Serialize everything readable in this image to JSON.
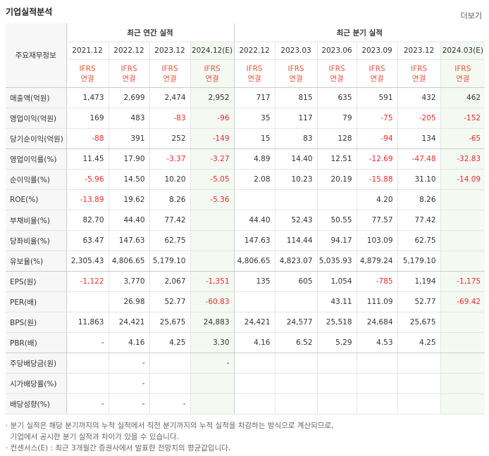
{
  "header": {
    "title": "기업실적분석",
    "more": "더보기"
  },
  "table": {
    "corner": "주요재무정보",
    "groups": [
      {
        "label": "최근 연간 실적",
        "columns": [
          {
            "period": "2021.12",
            "standard": "IFRS",
            "scope": "연결"
          },
          {
            "period": "2022.12",
            "standard": "IFRS",
            "scope": "연결"
          },
          {
            "period": "2023.12",
            "standard": "IFRS",
            "scope": "연결"
          },
          {
            "period": "2024.12(E)",
            "standard": "IFRS",
            "scope": "연결",
            "estimate": true
          }
        ]
      },
      {
        "label": "최근 분기 실적",
        "columns": [
          {
            "period": "2022.12",
            "standard": "IFRS",
            "scope": "연결"
          },
          {
            "period": "2023.03",
            "standard": "IFRS",
            "scope": "연결"
          },
          {
            "period": "2023.06",
            "standard": "IFRS",
            "scope": "연결"
          },
          {
            "period": "2023.09",
            "standard": "IFRS",
            "scope": "연결"
          },
          {
            "period": "2023.12",
            "standard": "IFRS",
            "scope": "연결"
          },
          {
            "period": "2024.03(E)",
            "standard": "IFRS",
            "scope": "연결",
            "estimate": true
          }
        ]
      }
    ],
    "rows": [
      {
        "label": "매출액(억원)",
        "values": [
          "1,473",
          "2,699",
          "2,474",
          "2,952",
          "717",
          "815",
          "635",
          "591",
          "432",
          "462"
        ]
      },
      {
        "label": "영업이익(억원)",
        "values": [
          "169",
          "483",
          "-83",
          "-96",
          "35",
          "117",
          "79",
          "-75",
          "-205",
          "-152"
        ]
      },
      {
        "label": "당기순이익(억원)",
        "values": [
          "-88",
          "391",
          "252",
          "-149",
          "15",
          "83",
          "128",
          "-94",
          "134",
          "-65"
        ],
        "divider": true
      },
      {
        "label": "영업이익률(%)",
        "values": [
          "11.45",
          "17.90",
          "-3.37",
          "-3.27",
          "4.89",
          "14.40",
          "12.51",
          "-12.69",
          "-47.48",
          "-32.83"
        ]
      },
      {
        "label": "순이익률(%)",
        "values": [
          "-5.96",
          "14.50",
          "10.20",
          "-5.05",
          "2.08",
          "10.23",
          "20.19",
          "-15.88",
          "31.10",
          "-14.09"
        ]
      },
      {
        "label": "ROE(%)",
        "values": [
          "-13.89",
          "19.62",
          "8.26",
          "-5.36",
          null,
          null,
          null,
          "4.20",
          "8.26",
          null
        ]
      },
      {
        "label": "부채비율(%)",
        "values": [
          "82.70",
          "44.40",
          "77.42",
          null,
          "44.40",
          "52.43",
          "50.55",
          "77.57",
          "77.42",
          null
        ]
      },
      {
        "label": "당좌비율(%)",
        "values": [
          "63.47",
          "147.63",
          "62.75",
          null,
          "147.63",
          "114.44",
          "94.17",
          "103.09",
          "62.75",
          null
        ]
      },
      {
        "label": "유보율(%)",
        "values": [
          "2,305.43",
          "4,806.65",
          "5,179.10",
          null,
          "4,806.65",
          "4,823.07",
          "5,035.93",
          "4,879.24",
          "5,179.10",
          null
        ],
        "divider": true
      },
      {
        "label": "EPS(원)",
        "values": [
          "-1,122",
          "3,770",
          "2,067",
          "-1,351",
          "135",
          "605",
          "1,054",
          "-785",
          "1,194",
          "-1,175"
        ]
      },
      {
        "label": "PER(배)",
        "values": [
          null,
          "26.98",
          "52.77",
          "-60.83",
          null,
          null,
          "43.11",
          "111.09",
          "52.77",
          "-69.42"
        ]
      },
      {
        "label": "BPS(원)",
        "values": [
          "11,863",
          "24,421",
          "25,675",
          "24,883",
          "24,421",
          "24,577",
          "25,518",
          "24,684",
          "25,675",
          null
        ]
      },
      {
        "label": "PBR(배)",
        "values": [
          "-",
          "4.16",
          "4.25",
          "3.30",
          "4.16",
          "6.52",
          "5.29",
          "4.53",
          "4.25",
          null
        ],
        "divider": true
      },
      {
        "label": "주당배당금(원)",
        "values": [
          null,
          "-",
          null,
          "-",
          null,
          null,
          null,
          null,
          null,
          null
        ]
      },
      {
        "label": "시가배당률(%)",
        "values": [
          null,
          "-",
          null,
          null,
          null,
          null,
          null,
          null,
          null,
          null
        ]
      },
      {
        "label": "배당성향(%)",
        "values": [
          "-",
          "-",
          "-",
          null,
          null,
          null,
          null,
          null,
          null,
          null
        ]
      }
    ]
  },
  "notes": [
    {
      "lines": [
        "· 분기 실적은 해당 분기까지의 누적 실적에서 직전 분기까지의 누적 실적을 차감하는 방식으로 계산되므로,",
        "  기업에서 공시한 분기 실적과 차이가 있을 수 있습니다."
      ]
    },
    {
      "lines": [
        "· 컨센서스(E) : 최근 3개월간 증권사에서 발표한 전망치의 평균값입니다."
      ]
    }
  ]
}
